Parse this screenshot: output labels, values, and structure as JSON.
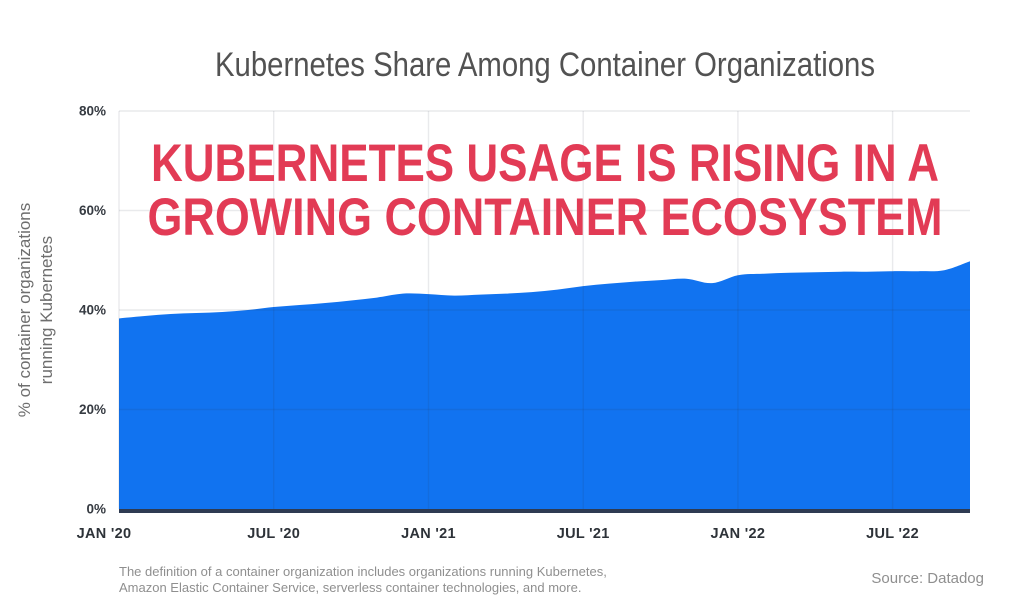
{
  "title": "Kubernetes Share Among Container Organizations",
  "headline": {
    "line1": "KUBERNETES USAGE IS RISING IN A",
    "line2": "GROWING CONTAINER ECOSYSTEM",
    "color": "#e23b55"
  },
  "y_axis_label": {
    "line1": "% of container organizations",
    "line2": "running Kubernetes"
  },
  "footer": {
    "note_line1": "The definition of a container organization includes organizations running Kubernetes,",
    "note_line2": "Amazon Elastic Container Service, serverless container technologies, and more.",
    "source": "Source: Datadog"
  },
  "chart_data": {
    "type": "area",
    "title": "Kubernetes Share Among Container Organizations",
    "ylabel": "% of container organizations running Kubernetes",
    "xlabel": "",
    "ylim": [
      0,
      80
    ],
    "grid": true,
    "legend_position": "none",
    "area_color": "#1173f0",
    "baseline_color": "#2f3b52",
    "grid_color": "rgba(44,52,66,0.10)",
    "yticks": [
      {
        "value": 0,
        "label": "0%"
      },
      {
        "value": 20,
        "label": "20%"
      },
      {
        "value": 40,
        "label": "40%"
      },
      {
        "value": 60,
        "label": "60%"
      },
      {
        "value": 80,
        "label": "80%"
      }
    ],
    "xticks": [
      {
        "index": 0,
        "label": "JAN '20"
      },
      {
        "index": 6,
        "label": "JUL '20"
      },
      {
        "index": 12,
        "label": "JAN '21"
      },
      {
        "index": 18,
        "label": "JUL '21"
      },
      {
        "index": 24,
        "label": "JAN '22"
      },
      {
        "index": 30,
        "label": "JUL '22"
      }
    ],
    "x": [
      "Jan '20",
      "Feb '20",
      "Mar '20",
      "Apr '20",
      "May '20",
      "Jun '20",
      "Jul '20",
      "Aug '20",
      "Sep '20",
      "Oct '20",
      "Nov '20",
      "Dec '20",
      "Jan '21",
      "Feb '21",
      "Mar '21",
      "Apr '21",
      "May '21",
      "Jun '21",
      "Jul '21",
      "Aug '21",
      "Sep '21",
      "Oct '21",
      "Nov '21",
      "Dec '21",
      "Jan '22",
      "Feb '22",
      "Mar '22",
      "Apr '22",
      "May '22",
      "Jun '22",
      "Jul '22",
      "Aug '22",
      "Sep '22",
      "Oct '22"
    ],
    "series": [
      {
        "name": "% of container organizations running Kubernetes",
        "values": [
          38.3,
          38.8,
          39.2,
          39.4,
          39.6,
          40.0,
          40.6,
          41.0,
          41.4,
          41.9,
          42.5,
          43.3,
          43.2,
          42.9,
          43.1,
          43.3,
          43.6,
          44.1,
          44.8,
          45.3,
          45.7,
          46.0,
          46.3,
          45.4,
          47.0,
          47.3,
          47.5,
          47.6,
          47.7,
          47.7,
          47.8,
          47.8,
          48.0,
          49.8
        ]
      }
    ]
  }
}
